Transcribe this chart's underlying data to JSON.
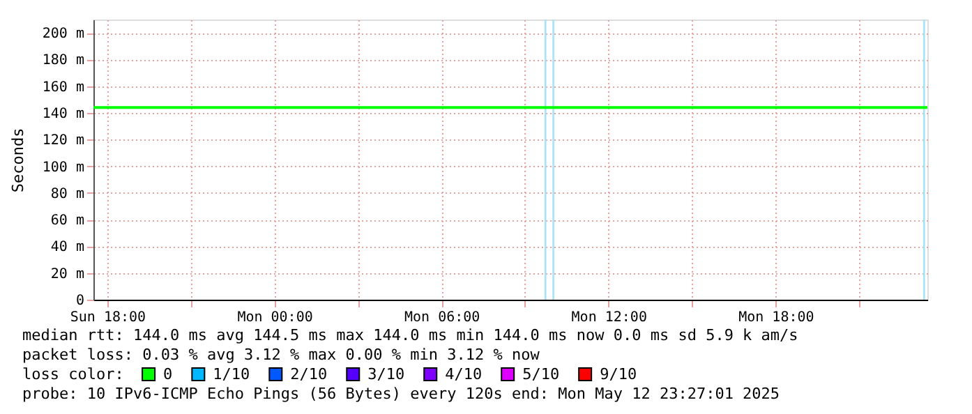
{
  "chart_data": {
    "type": "line",
    "ylabel": "Seconds",
    "legend_title": "loss color:",
    "x": [
      "2025-05-11T17:30",
      "2025-05-12T23:27"
    ],
    "series": [
      {
        "name": "0",
        "color": "#00ff00",
        "values": [
          144,
          144
        ]
      },
      {
        "name": "1/10",
        "color": "#00b8ff",
        "values": [
          null,
          null
        ]
      },
      {
        "name": "2/10",
        "color": "#0059ff",
        "values": [
          null,
          null
        ]
      },
      {
        "name": "3/10",
        "color": "#5500ff",
        "values": [
          null,
          null
        ]
      },
      {
        "name": "4/10",
        "color": "#7e00ff",
        "values": [
          null,
          null
        ]
      },
      {
        "name": "5/10",
        "color": "#dd00ff",
        "values": [
          null,
          null
        ]
      },
      {
        "name": "9/10",
        "color": "#ff0000",
        "values": [
          null,
          null
        ]
      }
    ],
    "xlim": [
      "2025-05-11T17:30",
      "2025-05-12T23:27"
    ],
    "xticks": [
      {
        "value": "2025-05-11T18:00",
        "label": "Sun 18:00"
      },
      {
        "value": "2025-05-11T21:00",
        "label": null
      },
      {
        "value": "2025-05-12T00:00",
        "label": "Mon 00:00"
      },
      {
        "value": "2025-05-12T03:00",
        "label": null
      },
      {
        "value": "2025-05-12T06:00",
        "label": "Mon 06:00"
      },
      {
        "value": "2025-05-12T09:00",
        "label": null
      },
      {
        "value": "2025-05-12T12:00",
        "label": "Mon 12:00"
      },
      {
        "value": "2025-05-12T15:00",
        "label": null
      },
      {
        "value": "2025-05-12T18:00",
        "label": "Mon 18:00"
      },
      {
        "value": "2025-05-12T21:00",
        "label": null
      }
    ],
    "ylim": [
      0,
      210
    ],
    "yticks": [
      0,
      {
        "value": 20,
        "label": "20 m"
      },
      {
        "value": 40,
        "label": "40 m"
      },
      {
        "value": 60,
        "label": "60 m"
      },
      {
        "value": 80,
        "label": "80 m"
      },
      {
        "value": 100,
        "label": "100 m"
      },
      {
        "value": 120,
        "label": "120 m"
      },
      {
        "value": 140,
        "label": "140 m"
      },
      {
        "value": 160,
        "label": "160 m"
      },
      {
        "value": 180,
        "label": "180 m"
      },
      {
        "value": 200,
        "label": "200 m"
      }
    ],
    "bands": [
      {
        "axis": "x",
        "from": "2025-05-12T09:42",
        "to": "2025-05-12T09:46",
        "color": "#a8e4f8"
      },
      {
        "axis": "x",
        "from": "2025-05-12T09:59",
        "to": "2025-05-12T10:03",
        "color": "#a8e4f8"
      },
      {
        "axis": "x",
        "from": "2025-05-12T23:18",
        "to": "2025-05-12T23:22",
        "color": "#a8e4f8"
      }
    ],
    "grid": true,
    "legend": "bottom",
    "marker": "none",
    "line_style": "solid",
    "annotations": [
      "median rtt:  144.0 ms avg  144.5 ms max  144.0 ms min  144.0 ms now  0.0 ms sd  5.9 k am/s",
      "packet loss: 0.03 % avg  3.12 % max  0.00 % min  3.12 % now",
      "probe:       10 IPv6-ICMP Echo Pings (56 Bytes) every 120s       end: Mon May 12 23:27:01 2025"
    ]
  }
}
